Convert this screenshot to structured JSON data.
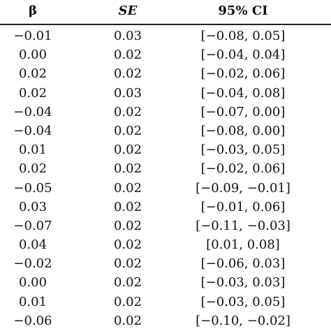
{
  "table": {
    "headers": {
      "beta": "β",
      "se": "SE",
      "ci": "95% CI"
    },
    "rows": [
      {
        "beta": "−0.01",
        "se": "0.03",
        "ci": "[−0.08, 0.05]"
      },
      {
        "beta": "0.00",
        "se": "0.02",
        "ci": "[−0.04, 0.04]"
      },
      {
        "beta": "0.02",
        "se": "0.02",
        "ci": "[−0.02, 0.06]"
      },
      {
        "beta": "0.02",
        "se": "0.03",
        "ci": "[−0.04, 0.08]"
      },
      {
        "beta": "−0.04",
        "se": "0.02",
        "ci": "[−0.07, 0.00]"
      },
      {
        "beta": "−0.04",
        "se": "0.02",
        "ci": "[−0.08, 0.00]"
      },
      {
        "beta": "0.01",
        "se": "0.02",
        "ci": "[−0.03, 0.05]"
      },
      {
        "beta": "0.02",
        "se": "0.02",
        "ci": "[−0.02, 0.06]"
      },
      {
        "beta": "−0.05",
        "se": "0.02",
        "ci": "[−0.09, −0.01]"
      },
      {
        "beta": "0.03",
        "se": "0.02",
        "ci": "[−0.01, 0.06]"
      },
      {
        "beta": "−0.07",
        "se": "0.02",
        "ci": "[−0.11, −0.03]"
      },
      {
        "beta": "0.04",
        "se": "0.02",
        "ci": "[0.01, 0.08]"
      },
      {
        "beta": "−0.02",
        "se": "0.02",
        "ci": "[−0.06, 0.03]"
      },
      {
        "beta": "0.00",
        "se": "0.02",
        "ci": "[−0.03, 0.03]"
      },
      {
        "beta": "0.01",
        "se": "0.02",
        "ci": "[−0.03, 0.05]"
      },
      {
        "beta": "−0.06",
        "se": "0.02",
        "ci": "[−0.10, −0.02]"
      }
    ]
  }
}
